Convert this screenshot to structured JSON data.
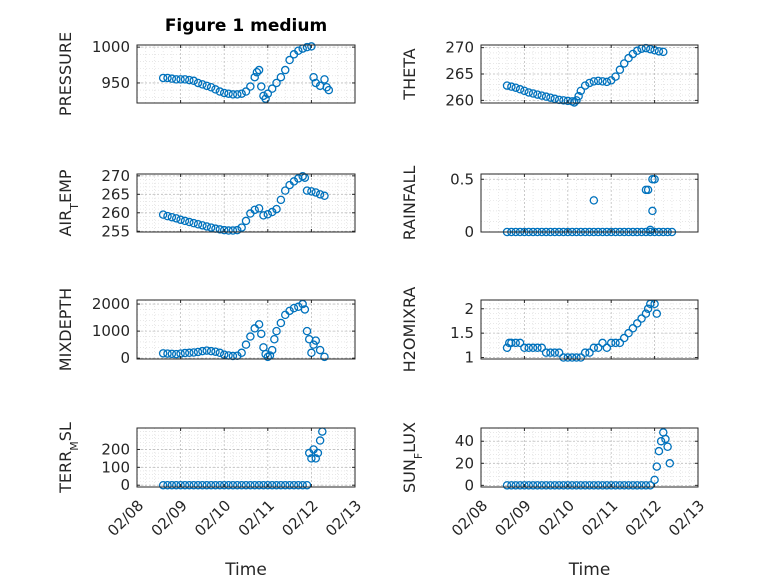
{
  "figure": {
    "title": "Figure 1 medium",
    "marker_color": "#0072BD"
  },
  "chart_data": [
    {
      "type": "scatter",
      "title": "Figure 1 medium",
      "ylabel": "PRESSURE",
      "xlabel": "",
      "ylim": [
        922,
        1003
      ],
      "yticks": [
        950,
        1000
      ],
      "xlim": [
        "02/08",
        "02/13"
      ],
      "grid": "on",
      "minor_grid": "on",
      "points": [
        [
          8.6,
          957
        ],
        [
          8.7,
          957
        ],
        [
          8.8,
          956
        ],
        [
          8.9,
          955
        ],
        [
          9.0,
          955
        ],
        [
          9.1,
          955
        ],
        [
          9.2,
          954
        ],
        [
          9.3,
          953
        ],
        [
          9.4,
          950
        ],
        [
          9.5,
          948
        ],
        [
          9.6,
          946
        ],
        [
          9.7,
          944
        ],
        [
          9.8,
          941
        ],
        [
          9.9,
          938
        ],
        [
          10.0,
          936
        ],
        [
          10.1,
          935
        ],
        [
          10.2,
          934
        ],
        [
          10.3,
          934
        ],
        [
          10.4,
          935
        ],
        [
          10.5,
          938
        ],
        [
          10.6,
          945
        ],
        [
          10.7,
          958
        ],
        [
          10.75,
          965
        ],
        [
          10.8,
          968
        ],
        [
          10.85,
          945
        ],
        [
          10.9,
          932
        ],
        [
          10.95,
          928
        ],
        [
          11.0,
          935
        ],
        [
          11.1,
          942
        ],
        [
          11.2,
          950
        ],
        [
          11.3,
          958
        ],
        [
          11.4,
          968
        ],
        [
          11.5,
          982
        ],
        [
          11.6,
          990
        ],
        [
          11.7,
          995
        ],
        [
          11.8,
          998
        ],
        [
          11.9,
          1000
        ],
        [
          12.0,
          1001
        ],
        [
          12.05,
          958
        ],
        [
          12.1,
          950
        ],
        [
          12.2,
          946
        ],
        [
          12.3,
          955
        ],
        [
          12.35,
          944
        ],
        [
          12.4,
          940
        ]
      ]
    },
    {
      "type": "scatter",
      "ylabel": "THETA",
      "xlabel": "",
      "ylim": [
        259.5,
        270.5
      ],
      "yticks": [
        260,
        265,
        270
      ],
      "xlim": [
        "02/08",
        "02/13"
      ],
      "grid": "on",
      "minor_grid": "on",
      "points": [
        [
          8.6,
          262.8
        ],
        [
          8.7,
          262.6
        ],
        [
          8.8,
          262.4
        ],
        [
          8.9,
          262.1
        ],
        [
          9.0,
          261.8
        ],
        [
          9.1,
          261.5
        ],
        [
          9.2,
          261.3
        ],
        [
          9.3,
          261.1
        ],
        [
          9.4,
          260.9
        ],
        [
          9.5,
          260.7
        ],
        [
          9.6,
          260.5
        ],
        [
          9.7,
          260.3
        ],
        [
          9.8,
          260.1
        ],
        [
          9.9,
          260.0
        ],
        [
          10.0,
          259.9
        ],
        [
          10.1,
          259.8
        ],
        [
          10.15,
          259.6
        ],
        [
          10.2,
          260.0
        ],
        [
          10.25,
          260.8
        ],
        [
          10.3,
          261.8
        ],
        [
          10.4,
          262.8
        ],
        [
          10.5,
          263.3
        ],
        [
          10.6,
          263.6
        ],
        [
          10.7,
          263.7
        ],
        [
          10.8,
          263.6
        ],
        [
          10.9,
          263.5
        ],
        [
          11.0,
          263.8
        ],
        [
          11.1,
          264.5
        ],
        [
          11.2,
          265.8
        ],
        [
          11.3,
          267.0
        ],
        [
          11.4,
          268.0
        ],
        [
          11.5,
          268.8
        ],
        [
          11.6,
          269.4
        ],
        [
          11.7,
          269.8
        ],
        [
          11.8,
          269.9
        ],
        [
          11.9,
          269.7
        ],
        [
          12.0,
          269.5
        ],
        [
          12.1,
          269.3
        ],
        [
          12.2,
          269.2
        ]
      ]
    },
    {
      "type": "scatter",
      "ylabel": "AIR_TEMP",
      "xlabel": "",
      "ylim": [
        254.8,
        270.5
      ],
      "yticks": [
        255,
        260,
        265,
        270
      ],
      "xlim": [
        "02/08",
        "02/13"
      ],
      "grid": "on",
      "minor_grid": "on",
      "points": [
        [
          8.6,
          259.5
        ],
        [
          8.7,
          259.1
        ],
        [
          8.8,
          258.8
        ],
        [
          8.9,
          258.5
        ],
        [
          9.0,
          258.1
        ],
        [
          9.1,
          257.8
        ],
        [
          9.2,
          257.5
        ],
        [
          9.3,
          257.2
        ],
        [
          9.4,
          256.9
        ],
        [
          9.5,
          256.6
        ],
        [
          9.6,
          256.3
        ],
        [
          9.7,
          256.0
        ],
        [
          9.8,
          255.7
        ],
        [
          9.9,
          255.5
        ],
        [
          10.0,
          255.3
        ],
        [
          10.1,
          255.2
        ],
        [
          10.2,
          255.2
        ],
        [
          10.3,
          255.3
        ],
        [
          10.4,
          256.0
        ],
        [
          10.5,
          257.8
        ],
        [
          10.6,
          259.8
        ],
        [
          10.7,
          260.8
        ],
        [
          10.8,
          261.2
        ],
        [
          10.9,
          259.3
        ],
        [
          11.0,
          259.6
        ],
        [
          11.1,
          260.2
        ],
        [
          11.2,
          261.0
        ],
        [
          11.3,
          263.5
        ],
        [
          11.4,
          266.0
        ],
        [
          11.5,
          267.5
        ],
        [
          11.6,
          268.5
        ],
        [
          11.7,
          269.3
        ],
        [
          11.8,
          269.9
        ],
        [
          11.85,
          269.5
        ],
        [
          11.9,
          266.0
        ],
        [
          12.0,
          265.8
        ],
        [
          12.1,
          265.5
        ],
        [
          12.2,
          265.0
        ],
        [
          12.3,
          264.6
        ]
      ]
    },
    {
      "type": "scatter",
      "ylabel": "RAINFALL",
      "xlabel": "",
      "ylim": [
        0,
        0.55
      ],
      "yticks": [
        0,
        0.5
      ],
      "xlim": [
        "02/08",
        "02/13"
      ],
      "grid": "on",
      "minor_grid": "on",
      "points": [
        [
          8.6,
          0
        ],
        [
          8.7,
          0
        ],
        [
          8.8,
          0
        ],
        [
          8.9,
          0
        ],
        [
          9.0,
          0
        ],
        [
          9.1,
          0
        ],
        [
          9.2,
          0
        ],
        [
          9.3,
          0
        ],
        [
          9.4,
          0
        ],
        [
          9.5,
          0
        ],
        [
          9.6,
          0
        ],
        [
          9.7,
          0
        ],
        [
          9.8,
          0
        ],
        [
          9.9,
          0
        ],
        [
          10.0,
          0
        ],
        [
          10.1,
          0
        ],
        [
          10.2,
          0
        ],
        [
          10.3,
          0
        ],
        [
          10.4,
          0
        ],
        [
          10.5,
          0
        ],
        [
          10.6,
          0
        ],
        [
          10.7,
          0
        ],
        [
          10.8,
          0
        ],
        [
          10.9,
          0
        ],
        [
          11.0,
          0
        ],
        [
          11.1,
          0
        ],
        [
          11.2,
          0
        ],
        [
          11.3,
          0
        ],
        [
          11.4,
          0
        ],
        [
          11.5,
          0
        ],
        [
          11.6,
          0
        ],
        [
          11.7,
          0
        ],
        [
          11.8,
          0
        ],
        [
          11.9,
          0
        ],
        [
          12.0,
          0
        ],
        [
          12.1,
          0
        ],
        [
          12.2,
          0
        ],
        [
          12.3,
          0
        ],
        [
          12.4,
          0
        ],
        [
          10.6,
          0.3
        ],
        [
          11.8,
          0.4
        ],
        [
          11.85,
          0.4
        ],
        [
          11.95,
          0.5
        ],
        [
          12.0,
          0.5
        ],
        [
          11.95,
          0.2
        ],
        [
          11.9,
          0.02
        ]
      ]
    },
    {
      "type": "scatter",
      "ylabel": "MIXDEPTH",
      "xlabel": "",
      "ylim": [
        -30,
        2150
      ],
      "yticks": [
        0,
        1000,
        2000
      ],
      "xlim": [
        "02/08",
        "02/13"
      ],
      "grid": "on",
      "minor_grid": "on",
      "points": [
        [
          8.6,
          180
        ],
        [
          8.7,
          170
        ],
        [
          8.8,
          160
        ],
        [
          8.9,
          150
        ],
        [
          9.0,
          170
        ],
        [
          9.1,
          190
        ],
        [
          9.2,
          200
        ],
        [
          9.3,
          210
        ],
        [
          9.4,
          230
        ],
        [
          9.5,
          260
        ],
        [
          9.6,
          280
        ],
        [
          9.7,
          260
        ],
        [
          9.8,
          240
        ],
        [
          9.9,
          200
        ],
        [
          10.0,
          130
        ],
        [
          10.1,
          100
        ],
        [
          10.2,
          80
        ],
        [
          10.3,
          90
        ],
        [
          10.4,
          200
        ],
        [
          10.5,
          500
        ],
        [
          10.6,
          800
        ],
        [
          10.7,
          1100
        ],
        [
          10.8,
          1250
        ],
        [
          10.85,
          900
        ],
        [
          10.9,
          400
        ],
        [
          10.95,
          150
        ],
        [
          11.0,
          50
        ],
        [
          11.05,
          100
        ],
        [
          11.1,
          300
        ],
        [
          11.15,
          700
        ],
        [
          11.2,
          1000
        ],
        [
          11.3,
          1300
        ],
        [
          11.4,
          1600
        ],
        [
          11.5,
          1750
        ],
        [
          11.6,
          1850
        ],
        [
          11.7,
          1900
        ],
        [
          11.8,
          2000
        ],
        [
          11.85,
          1800
        ],
        [
          11.9,
          1000
        ],
        [
          11.95,
          700
        ],
        [
          12.0,
          200
        ],
        [
          12.05,
          500
        ],
        [
          12.1,
          650
        ],
        [
          12.2,
          300
        ],
        [
          12.3,
          50
        ]
      ]
    },
    {
      "type": "scatter",
      "ylabel": "H2OMIXRA",
      "xlabel": "",
      "ylim": [
        0.97,
        2.18
      ],
      "yticks": [
        1,
        1.5,
        2
      ],
      "xlim": [
        "02/08",
        "02/13"
      ],
      "grid": "on",
      "minor_grid": "on",
      "points": [
        [
          8.6,
          1.2
        ],
        [
          8.65,
          1.3
        ],
        [
          8.7,
          1.3
        ],
        [
          8.8,
          1.3
        ],
        [
          8.9,
          1.3
        ],
        [
          9.0,
          1.2
        ],
        [
          9.1,
          1.2
        ],
        [
          9.2,
          1.2
        ],
        [
          9.3,
          1.2
        ],
        [
          9.4,
          1.2
        ],
        [
          9.5,
          1.1
        ],
        [
          9.6,
          1.1
        ],
        [
          9.7,
          1.1
        ],
        [
          9.8,
          1.1
        ],
        [
          9.9,
          1.0
        ],
        [
          10.0,
          1.0
        ],
        [
          10.1,
          1.0
        ],
        [
          10.2,
          1.0
        ],
        [
          10.3,
          1.0
        ],
        [
          10.4,
          1.1
        ],
        [
          10.5,
          1.1
        ],
        [
          10.6,
          1.2
        ],
        [
          10.7,
          1.2
        ],
        [
          10.8,
          1.3
        ],
        [
          10.9,
          1.2
        ],
        [
          11.0,
          1.3
        ],
        [
          11.1,
          1.3
        ],
        [
          11.2,
          1.3
        ],
        [
          11.3,
          1.4
        ],
        [
          11.4,
          1.5
        ],
        [
          11.5,
          1.6
        ],
        [
          11.6,
          1.7
        ],
        [
          11.7,
          1.8
        ],
        [
          11.8,
          1.9
        ],
        [
          11.85,
          2.0
        ],
        [
          11.9,
          2.1
        ],
        [
          12.0,
          2.1
        ],
        [
          12.05,
          1.9
        ]
      ]
    },
    {
      "type": "scatter",
      "ylabel": "TERR_MSL",
      "xlabel": "Time",
      "ylim": [
        -10,
        320
      ],
      "yticks": [
        0,
        100,
        200
      ],
      "xlim": [
        "02/08",
        "02/13"
      ],
      "grid": "on",
      "minor_grid": "on",
      "points": [
        [
          8.6,
          0
        ],
        [
          8.7,
          0
        ],
        [
          8.8,
          0
        ],
        [
          8.9,
          0
        ],
        [
          9.0,
          0
        ],
        [
          9.1,
          0
        ],
        [
          9.2,
          0
        ],
        [
          9.3,
          0
        ],
        [
          9.4,
          0
        ],
        [
          9.5,
          0
        ],
        [
          9.6,
          0
        ],
        [
          9.7,
          0
        ],
        [
          9.8,
          0
        ],
        [
          9.9,
          0
        ],
        [
          10.0,
          0
        ],
        [
          10.1,
          0
        ],
        [
          10.2,
          0
        ],
        [
          10.3,
          0
        ],
        [
          10.4,
          0
        ],
        [
          10.5,
          0
        ],
        [
          10.6,
          0
        ],
        [
          10.7,
          0
        ],
        [
          10.8,
          0
        ],
        [
          10.9,
          0
        ],
        [
          11.0,
          0
        ],
        [
          11.1,
          0
        ],
        [
          11.2,
          0
        ],
        [
          11.3,
          0
        ],
        [
          11.4,
          0
        ],
        [
          11.5,
          0
        ],
        [
          11.6,
          0
        ],
        [
          11.7,
          0
        ],
        [
          11.8,
          0
        ],
        [
          11.9,
          0
        ],
        [
          11.95,
          180
        ],
        [
          12.0,
          150
        ],
        [
          12.05,
          200
        ],
        [
          12.1,
          150
        ],
        [
          12.15,
          180
        ],
        [
          12.2,
          250
        ],
        [
          12.25,
          300
        ]
      ]
    },
    {
      "type": "scatter",
      "ylabel": "SUN_FLUX",
      "xlabel": "Time",
      "ylim": [
        -1.5,
        52
      ],
      "yticks": [
        0,
        20,
        40
      ],
      "xlim": [
        "02/08",
        "02/13"
      ],
      "grid": "on",
      "minor_grid": "on",
      "points": [
        [
          8.6,
          0
        ],
        [
          8.7,
          0
        ],
        [
          8.8,
          0
        ],
        [
          8.9,
          0
        ],
        [
          9.0,
          0
        ],
        [
          9.1,
          0
        ],
        [
          9.2,
          0
        ],
        [
          9.3,
          0
        ],
        [
          9.4,
          0
        ],
        [
          9.5,
          0
        ],
        [
          9.6,
          0
        ],
        [
          9.7,
          0
        ],
        [
          9.8,
          0
        ],
        [
          9.9,
          0
        ],
        [
          10.0,
          0
        ],
        [
          10.1,
          0
        ],
        [
          10.2,
          0
        ],
        [
          10.3,
          0
        ],
        [
          10.4,
          0
        ],
        [
          10.5,
          0
        ],
        [
          10.6,
          0
        ],
        [
          10.7,
          0
        ],
        [
          10.8,
          0
        ],
        [
          10.9,
          0
        ],
        [
          11.0,
          0
        ],
        [
          11.1,
          0
        ],
        [
          11.2,
          0
        ],
        [
          11.3,
          0
        ],
        [
          11.4,
          0
        ],
        [
          11.5,
          0
        ],
        [
          11.6,
          0
        ],
        [
          11.7,
          0
        ],
        [
          11.8,
          0
        ],
        [
          11.9,
          0
        ],
        [
          12.0,
          5
        ],
        [
          12.05,
          17
        ],
        [
          12.1,
          31
        ],
        [
          12.15,
          40
        ],
        [
          12.2,
          48
        ],
        [
          12.25,
          42
        ],
        [
          12.3,
          35
        ],
        [
          12.35,
          20
        ]
      ]
    }
  ]
}
